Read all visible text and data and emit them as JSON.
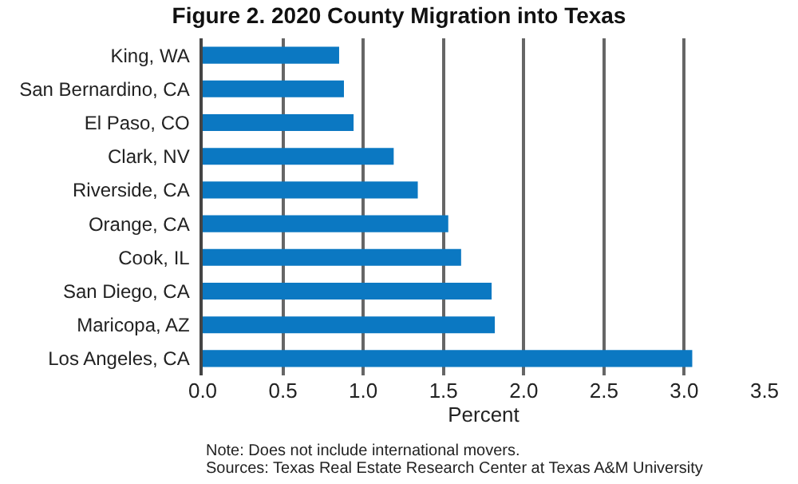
{
  "chart_data": {
    "type": "bar",
    "orientation": "horizontal",
    "title": "Figure 2. 2020 County Migration into Texas",
    "xlabel": "Percent",
    "categories": [
      "King, WA",
      "San Bernardino, CA",
      "El Paso, CO",
      "Clark, NV",
      "Riverside, CA",
      "Orange, CA",
      "Cook, IL",
      "San Diego, CA",
      "Maricopa, AZ",
      "Los Angeles, CA"
    ],
    "values": [
      0.85,
      0.88,
      0.94,
      1.19,
      1.34,
      1.53,
      1.61,
      1.8,
      1.82,
      3.05
    ],
    "color": "#0b78c2",
    "xlim": [
      0,
      3.5
    ],
    "xticks": [
      {
        "value": 0,
        "label": "0.0"
      },
      0.5,
      {
        "value": 1,
        "label": "1.0"
      },
      1.5,
      {
        "value": 2,
        "label": "2.0"
      },
      2.5,
      {
        "value": 3,
        "label": "3.0"
      },
      3.5
    ],
    "grid": "x",
    "annotations": [
      "Note: Does not include international movers.",
      "Sources: Texas Real Estate Research Center at Texas A&M University"
    ]
  }
}
